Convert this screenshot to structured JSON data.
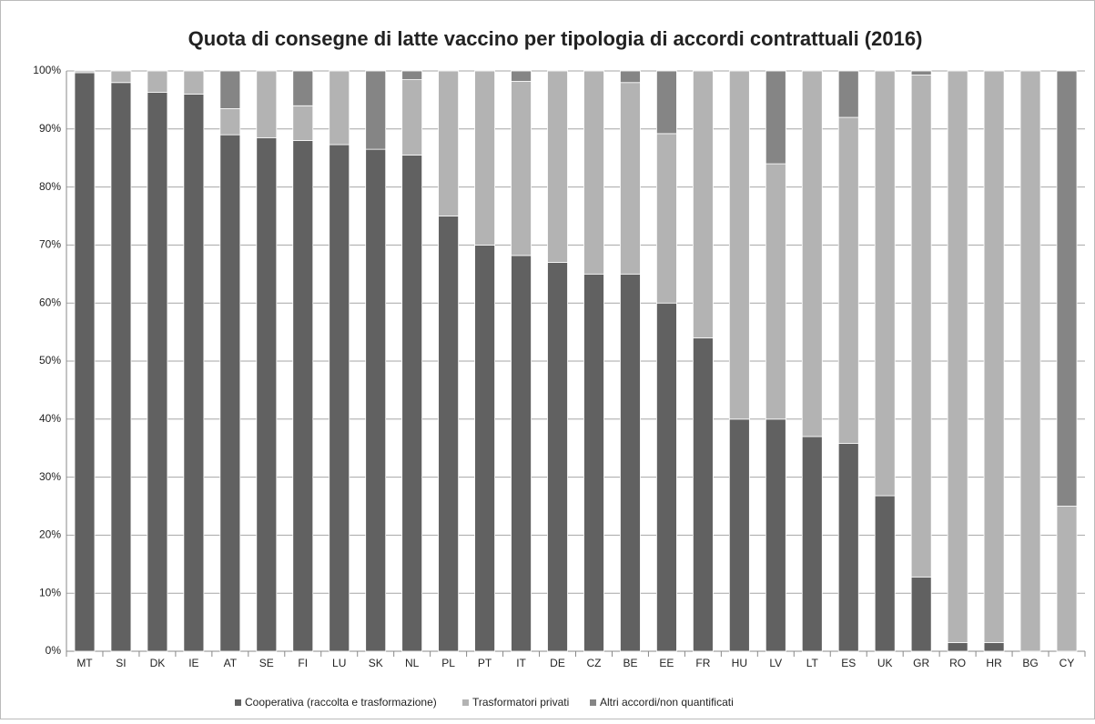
{
  "chart_data": {
    "type": "stacked_bar",
    "title": "Quota di consegne di latte vaccino per tipologia di accordi contrattuali (2016)",
    "categories": [
      "MT",
      "SI",
      "DK",
      "IE",
      "AT",
      "SE",
      "FI",
      "LU",
      "SK",
      "NL",
      "PL",
      "PT",
      "IT",
      "DE",
      "CZ",
      "BE",
      "EE",
      "FR",
      "HU",
      "LV",
      "LT",
      "ES",
      "UK",
      "GR",
      "RO",
      "HR",
      "BG",
      "CY"
    ],
    "series": [
      {
        "name": "Cooperativa (raccolta e trasformazione)",
        "color": "#616161",
        "values": [
          99.7,
          98,
          96.3,
          96,
          89,
          88.5,
          88,
          87.3,
          86.5,
          85.5,
          75,
          70,
          68.2,
          67,
          65,
          65,
          60,
          54,
          40,
          40,
          37,
          35.8,
          26.8,
          12.8,
          1.5,
          1.5,
          0,
          0
        ]
      },
      {
        "name": "Trasformatori privati",
        "color": "#b3b3b3",
        "values": [
          0.3,
          2,
          3.7,
          4,
          4.5,
          11.5,
          6,
          12.7,
          0,
          13,
          25,
          30,
          30,
          33,
          35,
          33,
          29.2,
          46,
          60,
          44,
          63,
          56.2,
          73.2,
          86.5,
          98.5,
          98.5,
          100,
          25
        ]
      },
      {
        "name": "Altri accordi/non quantificati",
        "color": "#858585",
        "values": [
          0,
          0,
          0,
          0,
          6.5,
          0,
          6,
          0,
          13.5,
          1.5,
          0,
          0,
          1.8,
          0,
          0,
          2,
          10.8,
          0,
          0,
          16,
          0,
          8,
          0,
          0.7,
          0,
          0,
          0,
          75
        ]
      }
    ],
    "ylim": [
      0,
      100
    ],
    "yticks": [
      {
        "value": 0,
        "label": "0%"
      },
      {
        "value": 10,
        "label": "10%"
      },
      {
        "value": 20,
        "label": "20%"
      },
      {
        "value": 30,
        "label": "30%"
      },
      {
        "value": 40,
        "label": "40%"
      },
      {
        "value": 50,
        "label": "50%"
      },
      {
        "value": 60,
        "label": "60%"
      },
      {
        "value": 70,
        "label": "70%"
      },
      {
        "value": 80,
        "label": "80%"
      },
      {
        "value": 90,
        "label": "90%"
      },
      {
        "value": 100,
        "label": "100%"
      }
    ],
    "grid": true,
    "legend": "bottom"
  }
}
